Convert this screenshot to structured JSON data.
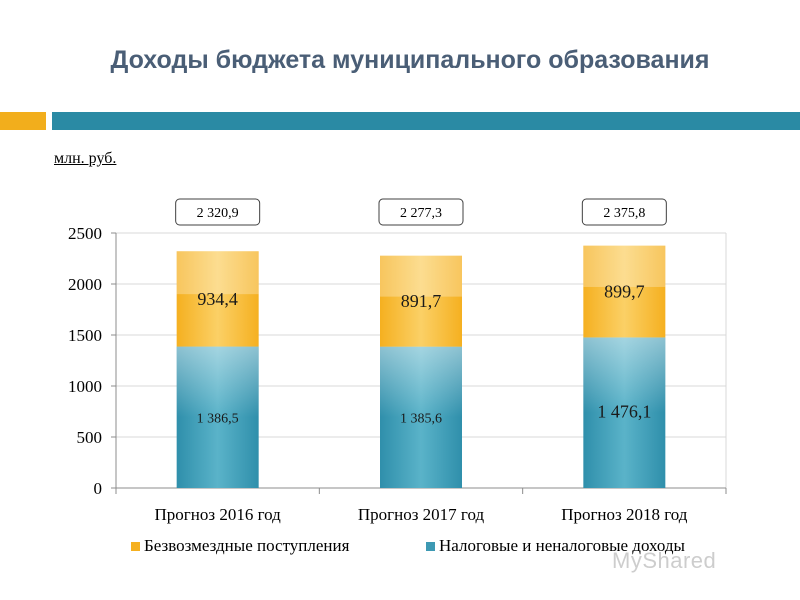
{
  "page": {
    "title": "Доходы бюджета муниципального образования",
    "unit": "млн. руб.",
    "watermark": "MyShared"
  },
  "colors": {
    "title": "#4a5e76",
    "accent_orange": "#f2ae1c",
    "accent_teal": "#2a8aa4",
    "series_top": "#f7b933",
    "series_bottom": "#3d99b3"
  },
  "chart_data": {
    "type": "bar",
    "stacked": true,
    "categories": [
      "Прогноз 2016 год",
      "Прогноз 2017 год",
      "Прогноз 2018 год"
    ],
    "series": [
      {
        "name": "Налоговые и неналоговые доходы",
        "values": [
          1386.5,
          1385.6,
          1476.1
        ],
        "labels": [
          "1 386,5",
          "1 385,6",
          "1 476,1"
        ]
      },
      {
        "name": "Безвозмездные поступления",
        "values": [
          934.4,
          891.7,
          899.7
        ],
        "labels": [
          "934,4",
          "891,7",
          "899,7"
        ]
      }
    ],
    "totals": [
      "2 320,9",
      "2 277,3",
      "2 375,8"
    ],
    "yticks": [
      0,
      500,
      1000,
      1500,
      2000,
      2500
    ],
    "ylim": [
      0,
      2500
    ],
    "legend": [
      "Безвозмездные поступления",
      "Налоговые и неналоговые доходы"
    ],
    "legend_position": "bottom"
  }
}
